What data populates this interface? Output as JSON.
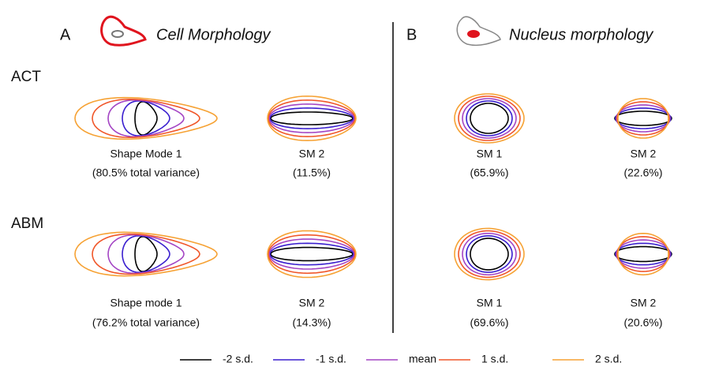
{
  "panels": [
    {
      "letter": "A",
      "title": "Cell Morphology",
      "modes": [
        [
          {
            "caption": "Shape Mode 1",
            "variance": "(80.5% total variance)"
          },
          {
            "caption": "SM 2",
            "variance": "(11.5%)"
          }
        ],
        [
          {
            "caption": "Shape mode 1",
            "variance": "(76.2% total variance)"
          },
          {
            "caption": "SM 2",
            "variance": "(14.3%)"
          }
        ]
      ]
    },
    {
      "letter": "B",
      "title": "Nucleus morphology",
      "modes": [
        [
          {
            "caption": "SM 1",
            "variance": "(65.9%)"
          },
          {
            "caption": "SM 2",
            "variance": "(22.6%)"
          }
        ],
        [
          {
            "caption": "SM 1",
            "variance": "(69.6%)"
          },
          {
            "caption": "SM 2",
            "variance": "(20.6%)"
          }
        ]
      ]
    }
  ],
  "rows": [
    "ACT",
    "ABM"
  ],
  "legend": [
    {
      "label": "-2 s.d.",
      "color": "#000000"
    },
    {
      "label": "-1 s.d.",
      "color": "#3a1fcf"
    },
    {
      "label": "mean",
      "color": "#a445c4"
    },
    {
      "label": "1 s.d.",
      "color": "#f0572a"
    },
    {
      "label": "2 s.d.",
      "color": "#f6a234"
    }
  ]
}
